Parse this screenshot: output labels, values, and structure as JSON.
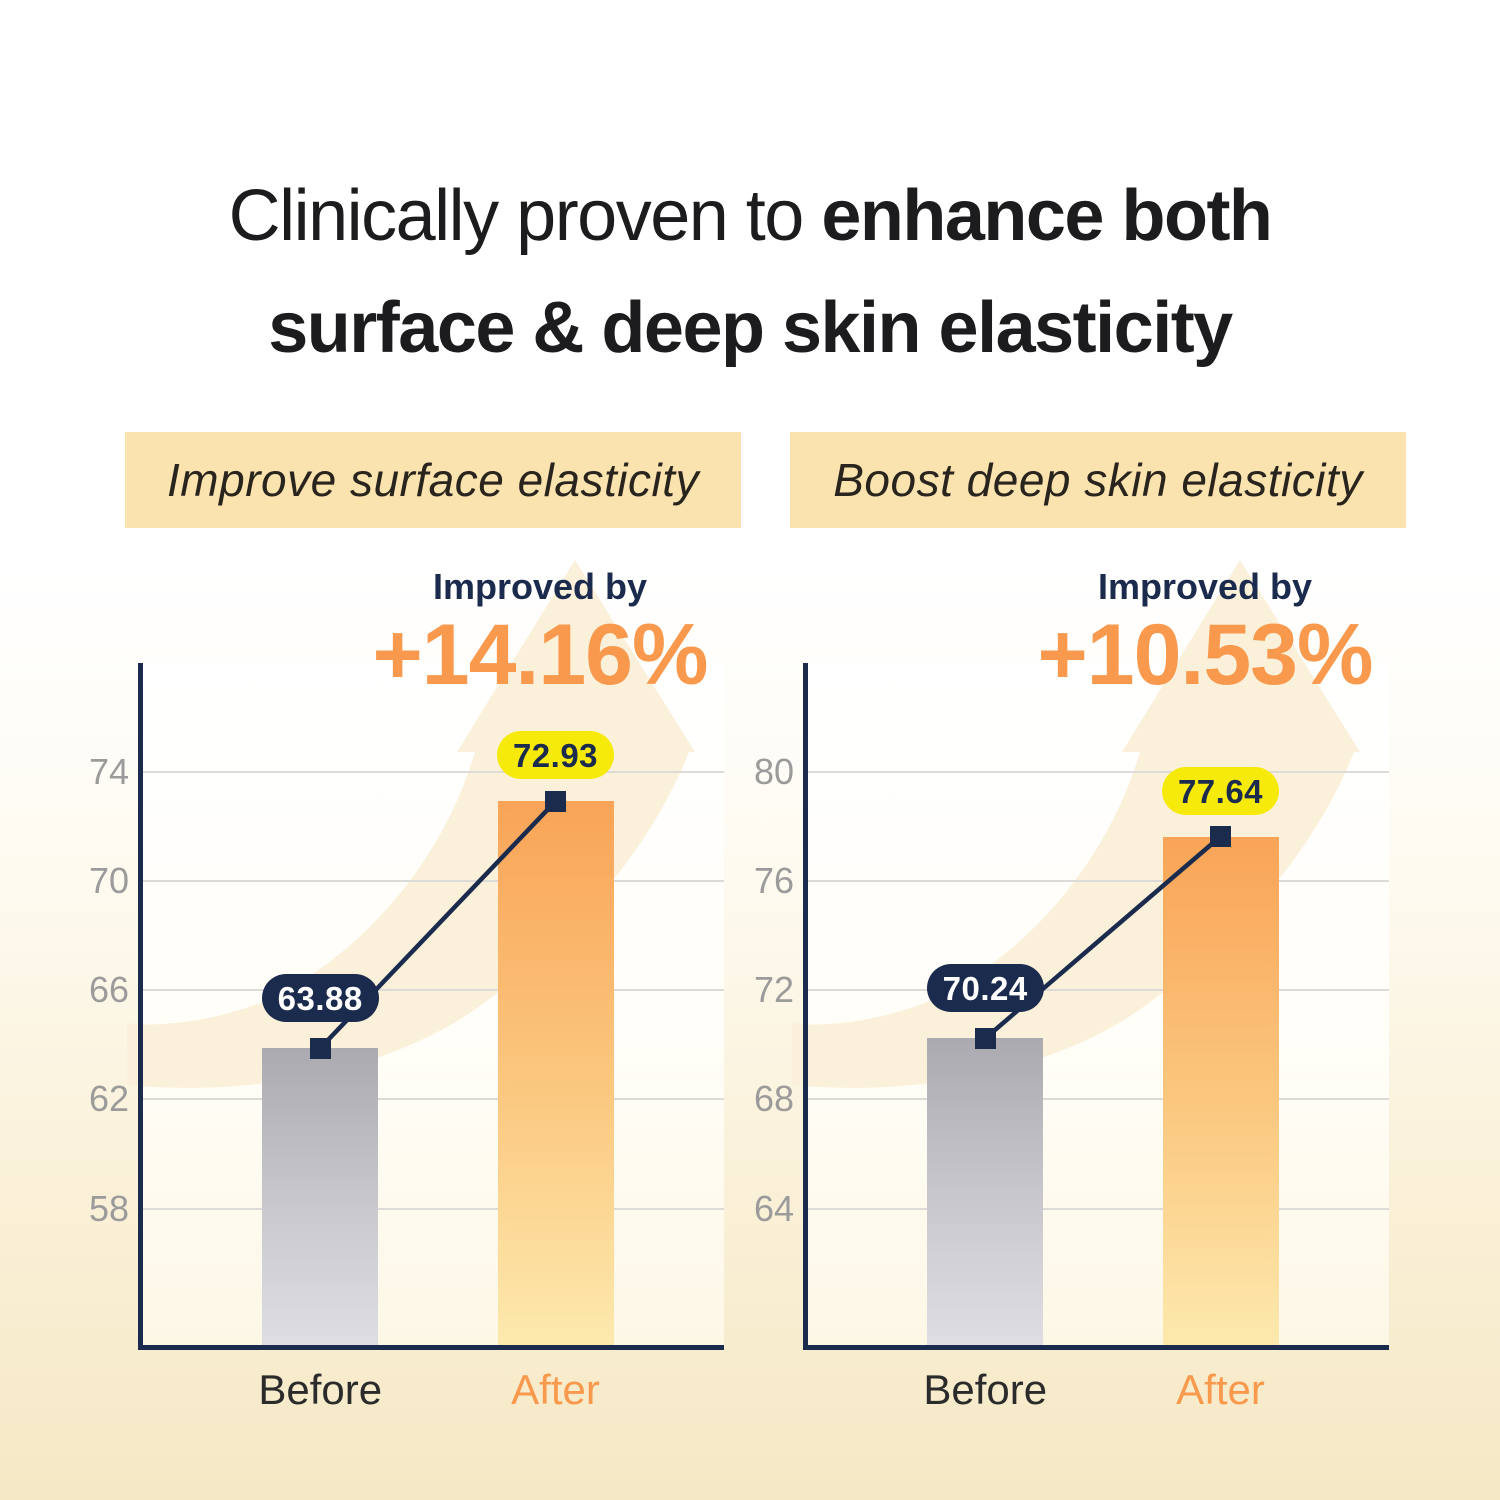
{
  "title": {
    "prefix": "Clinically proven to ",
    "bold": "enhance both",
    "line2": "surface & deep skin elasticity"
  },
  "chart_data": [
    {
      "type": "bar",
      "title": "Improve surface elasticity",
      "improvement_label": "Improved by",
      "improvement_value": "+14.16%",
      "categories": [
        "Before",
        "After"
      ],
      "values": [
        63.88,
        72.93
      ],
      "value_labels": [
        "63.88",
        "72.93"
      ],
      "yticks": [
        74,
        70,
        66,
        62,
        58
      ],
      "ylim": [
        53,
        78
      ],
      "grid": true,
      "legend": "none"
    },
    {
      "type": "bar",
      "title": "Boost deep skin elasticity",
      "improvement_label": "Improved by",
      "improvement_value": "+10.53%",
      "categories": [
        "Before",
        "After"
      ],
      "values": [
        70.24,
        77.64
      ],
      "value_labels": [
        "70.24",
        "77.64"
      ],
      "yticks": [
        80,
        76,
        72,
        68,
        64
      ],
      "ylim": [
        59,
        84
      ],
      "grid": true,
      "legend": "none"
    }
  ],
  "colors": {
    "navy": "#1b2b4d",
    "orange": "#f8994d",
    "yellow_pill": "#f6ea0b",
    "header_band_bg": "#fae3ae",
    "gridline": "#dcdbd8",
    "tick_label": "#9b9b9b",
    "bar_before_top": "#aaaab0",
    "bar_before_bottom": "#dfdee2",
    "bar_after_top": "#f9a457",
    "bar_after_bottom": "#fde9ae",
    "watermark": "#fbf0d9",
    "page_bottom": "#f5e8c5",
    "title_text": "#1c1c1e",
    "before_label": "#2b2b2b"
  }
}
